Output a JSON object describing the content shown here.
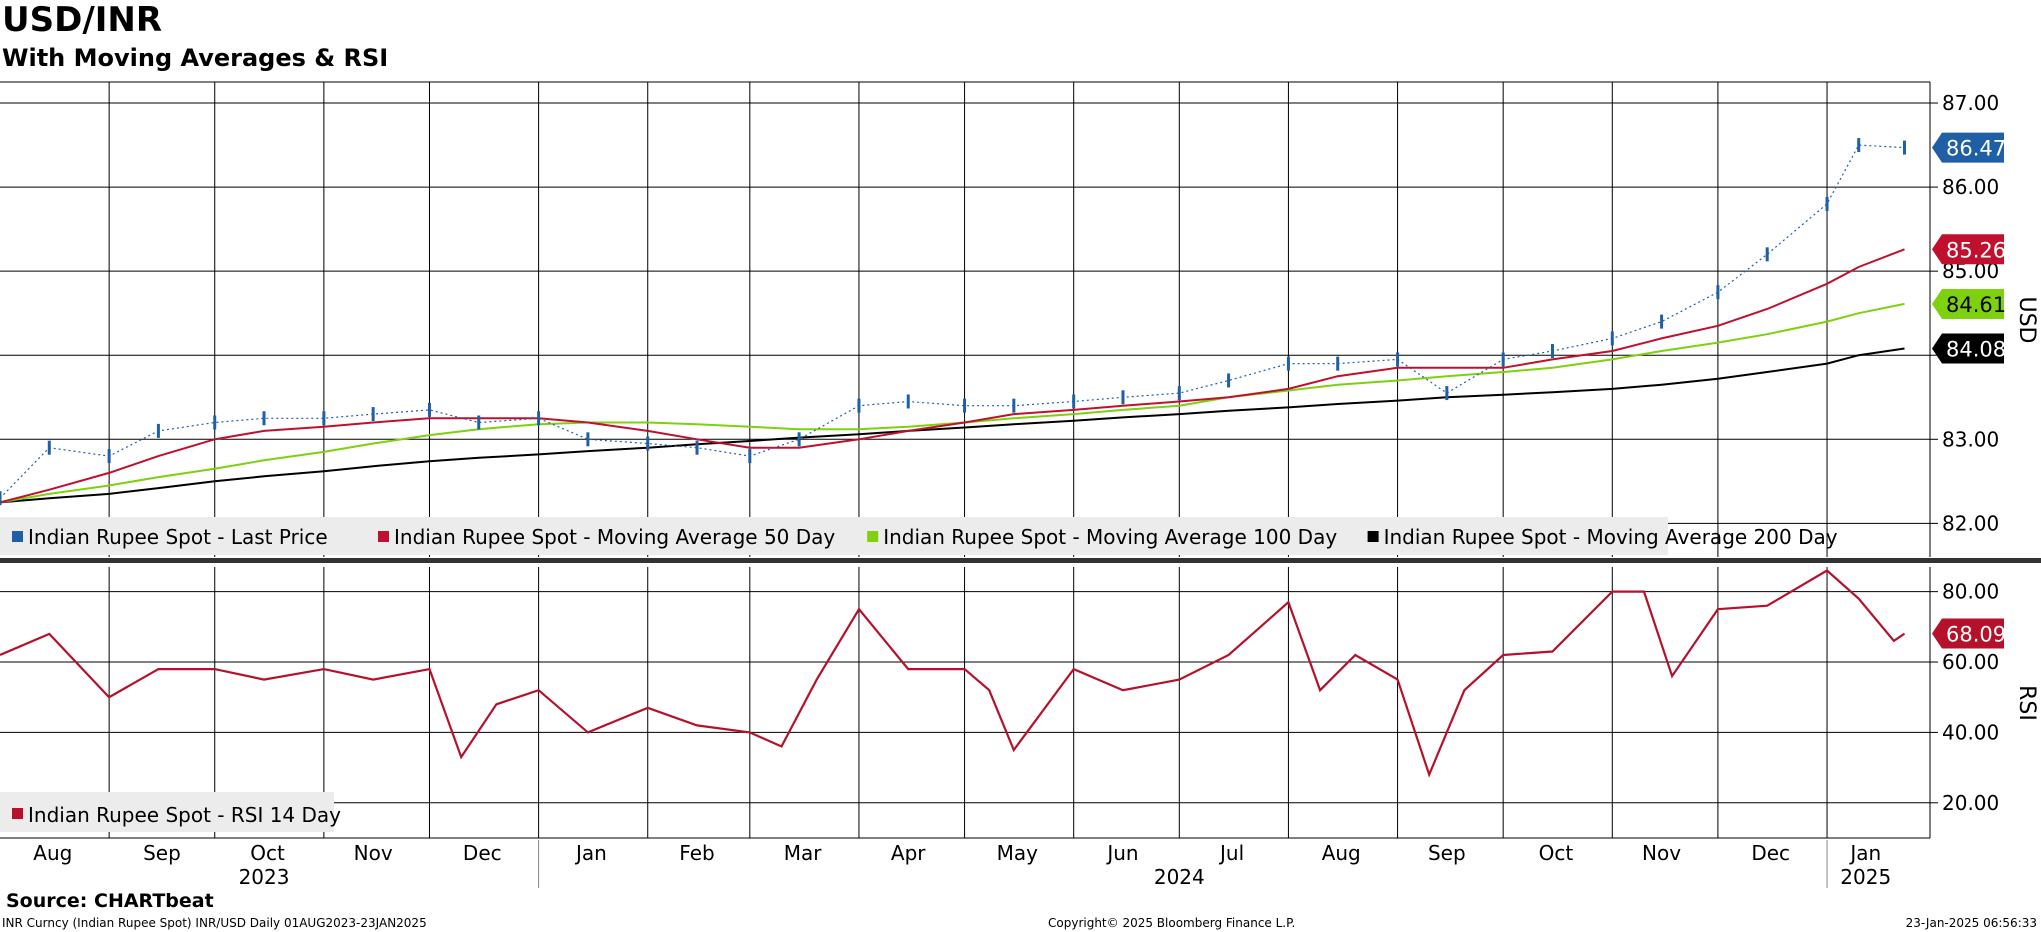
{
  "header": {
    "title": "USD/INR",
    "subtitle": "With Moving Averages & RSI"
  },
  "footer": {
    "source": "Source: CHARTbeat",
    "left": "INR Curncy (Indian Rupee Spot) INR/USD  Daily 01AUG2023-23JAN2025",
    "middle": "Copyright© 2025 Bloomberg Finance L.P.",
    "right": "23-Jan-2025 06:56:33"
  },
  "colors": {
    "price": "#1f5fa6",
    "ma50": "#c0102e",
    "ma100": "#7dd10e",
    "ma200": "#000000",
    "rsi": "#b5112b",
    "legend_bg": "#ececec"
  },
  "chart_data": [
    {
      "type": "line",
      "panel": "price",
      "ylabel": "USD",
      "ylim": [
        81.6,
        87.25
      ],
      "yticks": [
        "87.00",
        "86.00",
        "85.00",
        "84.00",
        "83.00",
        "82.00"
      ],
      "x_month_labels": [
        "Aug",
        "Sep",
        "Oct",
        "Nov",
        "Dec",
        "Jan",
        "Feb",
        "Mar",
        "Apr",
        "May",
        "Jun",
        "Jul",
        "Aug",
        "Sep",
        "Oct",
        "Nov",
        "Dec",
        "Jan"
      ],
      "x_year_labels": [
        "2023",
        "2024",
        "2025"
      ],
      "legend_position": "bottom-left",
      "x": [
        "2023-08-01",
        "2023-08-15",
        "2023-09-01",
        "2023-09-15",
        "2023-10-01",
        "2023-10-15",
        "2023-11-01",
        "2023-11-15",
        "2023-12-01",
        "2023-12-15",
        "2024-01-01",
        "2024-01-15",
        "2024-02-01",
        "2024-02-15",
        "2024-03-01",
        "2024-03-15",
        "2024-04-01",
        "2024-04-15",
        "2024-05-01",
        "2024-05-15",
        "2024-06-01",
        "2024-06-15",
        "2024-07-01",
        "2024-07-15",
        "2024-08-01",
        "2024-08-15",
        "2024-09-01",
        "2024-09-15",
        "2024-10-01",
        "2024-10-15",
        "2024-11-01",
        "2024-11-15",
        "2024-12-01",
        "2024-12-15",
        "2025-01-01",
        "2025-01-10",
        "2025-01-23"
      ],
      "series": [
        {
          "name": "Indian Rupee Spot - Last Price",
          "values": [
            82.3,
            82.9,
            82.8,
            83.1,
            83.2,
            83.25,
            83.25,
            83.3,
            83.35,
            83.2,
            83.25,
            83.0,
            82.95,
            82.9,
            82.8,
            83.0,
            83.4,
            83.45,
            83.4,
            83.4,
            83.45,
            83.5,
            83.55,
            83.7,
            83.9,
            83.9,
            83.95,
            83.55,
            83.95,
            84.05,
            84.2,
            84.4,
            84.75,
            85.2,
            85.8,
            86.5,
            86.47
          ],
          "last_label": "86.47"
        },
        {
          "name": "Indian Rupee Spot - Moving Average 50 Day",
          "values": [
            82.25,
            82.4,
            82.6,
            82.8,
            83.0,
            83.1,
            83.15,
            83.2,
            83.25,
            83.25,
            83.25,
            83.2,
            83.1,
            83.0,
            82.9,
            82.9,
            83.0,
            83.1,
            83.2,
            83.3,
            83.35,
            83.4,
            83.45,
            83.5,
            83.6,
            83.75,
            83.85,
            83.85,
            83.85,
            83.95,
            84.05,
            84.2,
            84.35,
            84.55,
            84.85,
            85.05,
            85.26
          ],
          "last_label": "85.26"
        },
        {
          "name": "Indian Rupee Spot - Moving Average 100 Day",
          "values": [
            82.25,
            82.35,
            82.45,
            82.55,
            82.65,
            82.75,
            82.85,
            82.95,
            83.05,
            83.12,
            83.18,
            83.2,
            83.2,
            83.18,
            83.15,
            83.12,
            83.12,
            83.15,
            83.2,
            83.25,
            83.3,
            83.35,
            83.4,
            83.5,
            83.58,
            83.65,
            83.7,
            83.75,
            83.8,
            83.85,
            83.95,
            84.05,
            84.15,
            84.25,
            84.4,
            84.5,
            84.61
          ],
          "last_label": "84.61"
        },
        {
          "name": "Indian Rupee Spot - Moving Average 200 Day",
          "values": [
            82.25,
            82.3,
            82.35,
            82.42,
            82.5,
            82.56,
            82.62,
            82.68,
            82.74,
            82.78,
            82.82,
            82.86,
            82.9,
            82.94,
            82.98,
            83.02,
            83.06,
            83.1,
            83.14,
            83.18,
            83.22,
            83.26,
            83.3,
            83.34,
            83.38,
            83.42,
            83.46,
            83.5,
            83.53,
            83.56,
            83.6,
            83.65,
            83.72,
            83.8,
            83.9,
            84.0,
            84.08
          ],
          "last_label": "84.08"
        }
      ]
    },
    {
      "type": "line",
      "panel": "rsi",
      "ylabel": "RSI",
      "ylim": [
        10,
        87
      ],
      "yticks": [
        "80.00",
        "60.00",
        "40.00",
        "20.00"
      ],
      "legend_position": "bottom-left",
      "x": [
        "2023-08-01",
        "2023-08-15",
        "2023-09-01",
        "2023-09-15",
        "2023-10-01",
        "2023-10-15",
        "2023-11-01",
        "2023-11-15",
        "2023-12-01",
        "2023-12-10",
        "2023-12-20",
        "2024-01-01",
        "2024-01-15",
        "2024-02-01",
        "2024-02-15",
        "2024-03-01",
        "2024-03-10",
        "2024-03-20",
        "2024-04-01",
        "2024-04-15",
        "2024-05-01",
        "2024-05-08",
        "2024-05-15",
        "2024-06-01",
        "2024-06-15",
        "2024-07-01",
        "2024-07-15",
        "2024-08-01",
        "2024-08-10",
        "2024-08-20",
        "2024-09-01",
        "2024-09-10",
        "2024-09-20",
        "2024-10-01",
        "2024-10-15",
        "2024-11-01",
        "2024-11-10",
        "2024-11-18",
        "2024-12-01",
        "2024-12-15",
        "2025-01-01",
        "2025-01-10",
        "2025-01-20",
        "2025-01-23"
      ],
      "series": [
        {
          "name": "Indian Rupee Spot - RSI 14 Day",
          "values": [
            62,
            68,
            50,
            58,
            58,
            55,
            58,
            55,
            58,
            33,
            48,
            52,
            40,
            47,
            42,
            40,
            36,
            55,
            75,
            58,
            58,
            52,
            35,
            58,
            52,
            55,
            62,
            77,
            52,
            62,
            55,
            28,
            52,
            62,
            63,
            80,
            80,
            56,
            75,
            76,
            86,
            78,
            66,
            68.09
          ],
          "last_label": "68.09"
        }
      ]
    }
  ]
}
